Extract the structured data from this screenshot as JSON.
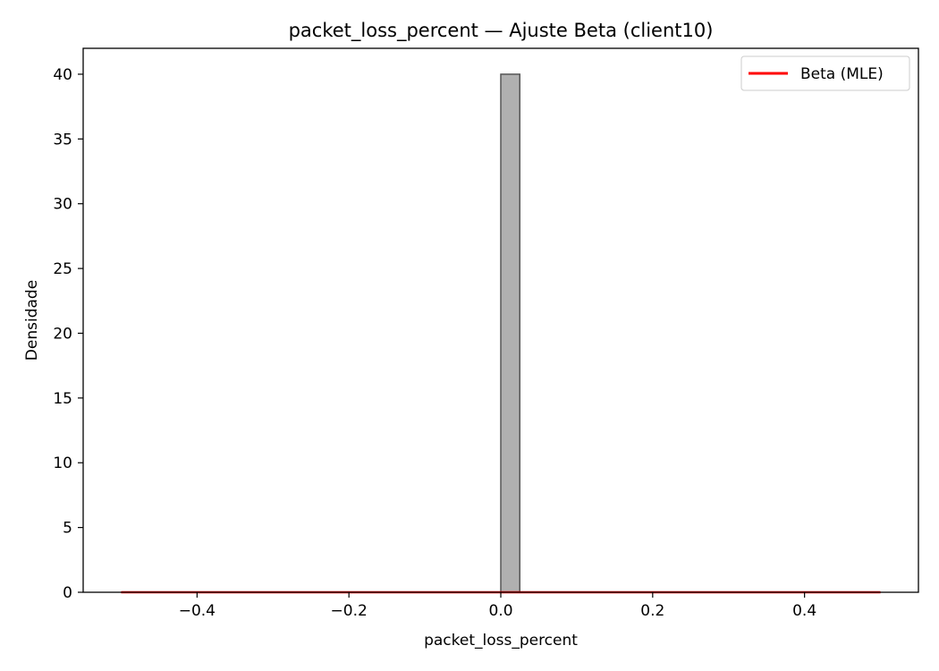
{
  "chart_data": {
    "type": "bar",
    "title": "packet_loss_percent — Ajuste Beta (client10)",
    "xlabel": "packet_loss_percent",
    "ylabel": "Densidade",
    "xlim": [
      -0.55,
      0.55
    ],
    "ylim": [
      0,
      42
    ],
    "xticks": [
      {
        "value": -0.4,
        "label": "−0.4"
      },
      {
        "value": -0.2,
        "label": "−0.2"
      },
      {
        "value": 0.0,
        "label": "0.0"
      },
      {
        "value": 0.2,
        "label": "0.2"
      },
      {
        "value": 0.4,
        "label": "0.4"
      }
    ],
    "yticks": [
      {
        "value": 0,
        "label": "0"
      },
      {
        "value": 5,
        "label": "5"
      },
      {
        "value": 10,
        "label": "10"
      },
      {
        "value": 15,
        "label": "15"
      },
      {
        "value": 20,
        "label": "20"
      },
      {
        "value": 25,
        "label": "25"
      },
      {
        "value": 30,
        "label": "30"
      },
      {
        "value": 35,
        "label": "35"
      },
      {
        "value": 40,
        "label": "40"
      }
    ],
    "bins": [
      {
        "x0": 0.0,
        "x1": 0.025,
        "density": 40
      }
    ],
    "fit_line": {
      "name": "Beta (MLE)",
      "x": [
        -0.5,
        0.5
      ],
      "y": [
        0,
        0
      ],
      "color": "#ff0000"
    },
    "bar_fill": "#b0b0b0",
    "bar_edge": "#555555",
    "grid": false,
    "legend": {
      "position": "top-right",
      "entries": [
        "Beta (MLE)"
      ]
    }
  }
}
